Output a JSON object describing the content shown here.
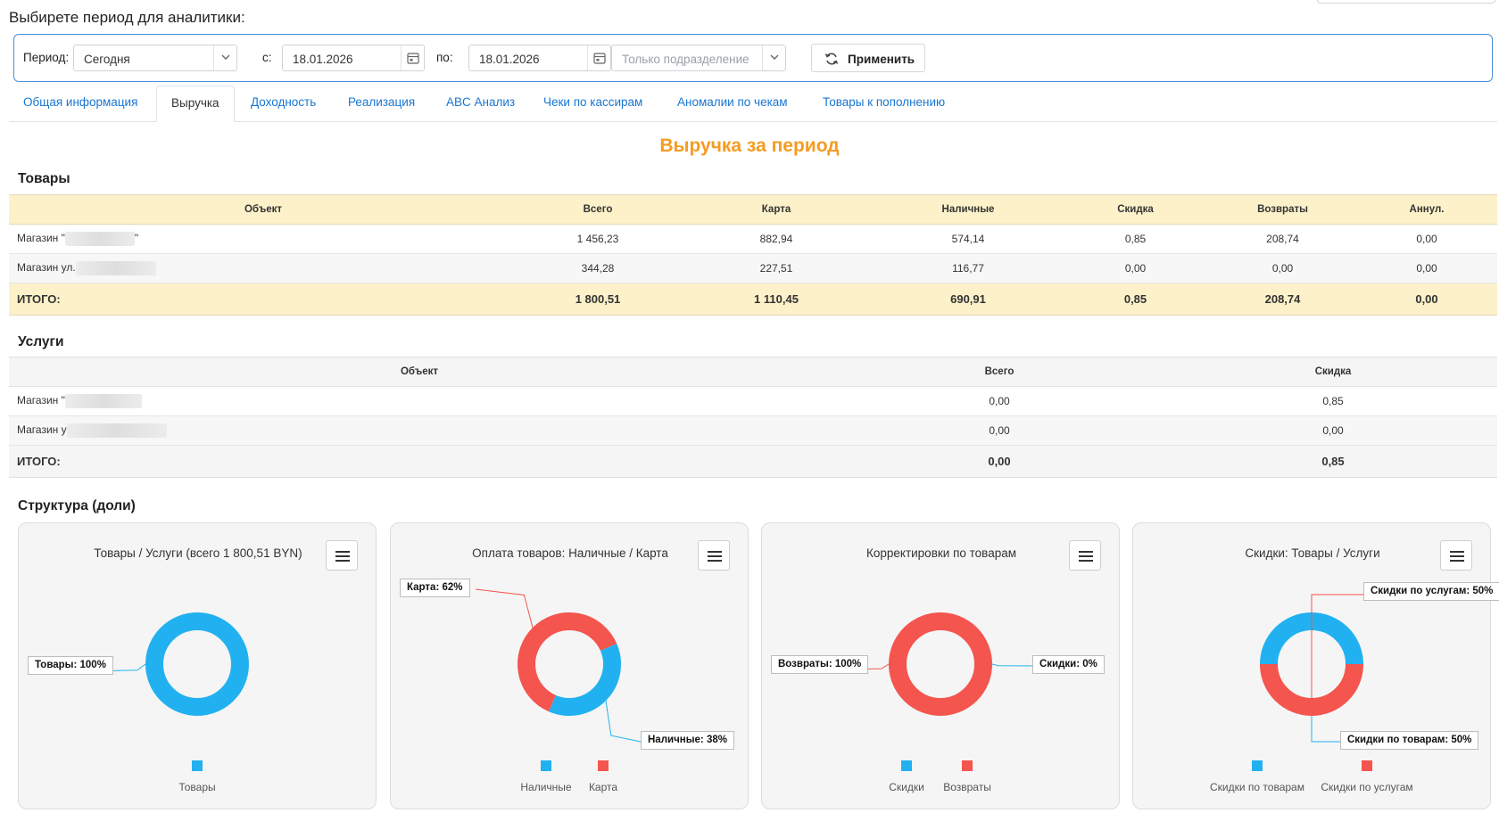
{
  "page": {
    "title": "Выбирете период для аналитики:"
  },
  "filter": {
    "period_label": "Период:",
    "period_value": "Сегодня",
    "from_label": "с:",
    "from_value": "18.01.2026",
    "to_label": "по:",
    "to_value": "18.01.2026",
    "subdivision_placeholder": "Только подразделение",
    "apply_label": "Применить"
  },
  "tabs": [
    {
      "label": "Общая информация",
      "active": false
    },
    {
      "label": "Выручка",
      "active": true
    },
    {
      "label": "Доходность",
      "active": false
    },
    {
      "label": "Реализация",
      "active": false
    },
    {
      "label": "ABC Анализ",
      "active": false
    },
    {
      "label": "Чеки по кассирам",
      "active": false
    },
    {
      "label": "Аномалии по чекам",
      "active": false
    },
    {
      "label": "Товары к пополнению",
      "active": false
    }
  ],
  "revenue": {
    "heading": "Выручка за период"
  },
  "goods": {
    "title": "Товары",
    "columns": [
      "Объект",
      "Всего",
      "Карта",
      "Наличные",
      "Скидка",
      "Возвраты",
      "Аннул."
    ],
    "rows": [
      {
        "object_prefix": "Магазин \"",
        "object_suffix": "\"",
        "total": "1 456,23",
        "card": "882,94",
        "cash": "574,14",
        "discount": "0,85",
        "returns": "208,74",
        "annul": "0,00"
      },
      {
        "object_prefix": "Магазин ул.",
        "object_suffix": "",
        "total": "344,28",
        "card": "227,51",
        "cash": "116,77",
        "discount": "0,00",
        "returns": "0,00",
        "annul": "0,00"
      }
    ],
    "totals": {
      "label": "ИТОГО:",
      "total": "1 800,51",
      "card": "1 110,45",
      "cash": "690,91",
      "discount": "0,85",
      "returns": "208,74",
      "annul": "0,00"
    }
  },
  "services": {
    "title": "Услуги",
    "columns": [
      "Объект",
      "Всего",
      "Скидка"
    ],
    "rows": [
      {
        "object_prefix": "Магазин \"",
        "total": "0,00",
        "discount": "0,85"
      },
      {
        "object_prefix": "Магазин у",
        "total": "0,00",
        "discount": "0,00"
      }
    ],
    "totals": {
      "label": "ИТОГО:",
      "total": "0,00",
      "discount": "0,85"
    }
  },
  "structure": {
    "title": "Структура (доли)"
  },
  "colors": {
    "blue": "#22b1f0",
    "red": "#f4554e",
    "accent": "#f59b22",
    "link": "#1976d2"
  },
  "chart_data": [
    {
      "type": "pie",
      "title": "Товары / Услуги (всего 1 800,51  BYN)",
      "categories": [
        "Товары"
      ],
      "values": [
        100
      ],
      "data_labels": [
        "Товары: 100%"
      ],
      "legend": [
        "Товары"
      ],
      "colors": [
        "#22b1f0"
      ],
      "legend_position": "bottom"
    },
    {
      "type": "pie",
      "title": "Оплата товаров: Наличные / Карта",
      "categories": [
        "Наличные",
        "Карта"
      ],
      "values": [
        38,
        62
      ],
      "data_labels": [
        "Наличные: 38%",
        "Карта: 62%"
      ],
      "legend": [
        "Наличные",
        "Карта"
      ],
      "colors": [
        "#22b1f0",
        "#f4554e"
      ],
      "legend_position": "bottom"
    },
    {
      "type": "pie",
      "title": "Корректировки по товарам",
      "categories": [
        "Скидки",
        "Возвраты"
      ],
      "values": [
        0,
        100
      ],
      "data_labels": [
        "Скидки: 0%",
        "Возвраты: 100%"
      ],
      "legend": [
        "Скидки",
        "Возвраты"
      ],
      "colors": [
        "#22b1f0",
        "#f4554e"
      ],
      "legend_position": "bottom"
    },
    {
      "type": "pie",
      "title": "Скидки: Товары / Услуги",
      "categories": [
        "Скидки по товарам",
        "Скидки по услугам"
      ],
      "values": [
        50,
        50
      ],
      "data_labels": [
        "Скидки по товарам: 50%",
        "Скидки по услугам: 50%"
      ],
      "legend": [
        "Скидки по товарам",
        "Скидки по услугам"
      ],
      "colors": [
        "#22b1f0",
        "#f4554e"
      ],
      "legend_position": "bottom"
    }
  ]
}
